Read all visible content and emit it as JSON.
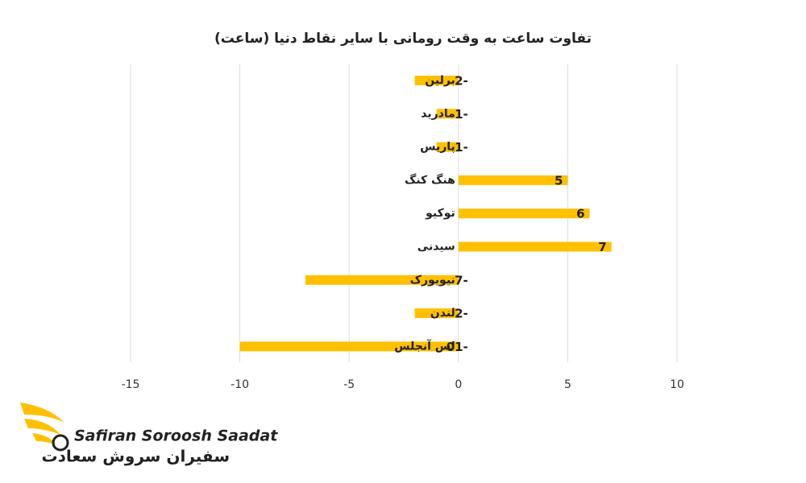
{
  "chart_data": {
    "type": "hbar",
    "title": "تفاوت ساعت به وقت رومانی با سایر نقاط دنیا (ساعت)",
    "categories": [
      "برلین",
      "مادرید",
      "پاریس",
      "هنگ کنگ",
      "توکیو",
      "سیدنی",
      "نیویورک",
      "لندن",
      "لس آنجلس"
    ],
    "values": [
      -2,
      -1,
      -1,
      5,
      6,
      7,
      -7,
      -2,
      -10
    ],
    "color": "#FFC000",
    "xlim": [
      -15,
      10
    ],
    "xticks": [
      -15,
      -10,
      -5,
      0,
      5,
      10
    ],
    "grid": true
  },
  "logo": {
    "name": "Safiran Soroosh Saadat",
    "name_fa": "سفیران سروش سعادت"
  }
}
